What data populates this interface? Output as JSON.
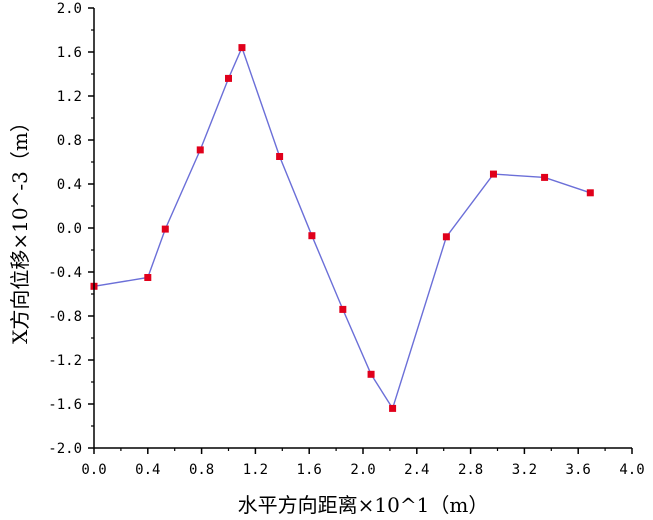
{
  "chart_data": {
    "type": "line",
    "title": "",
    "xlabel": "水平方向距离×10^1（m）",
    "ylabel": "X方向位移×10^-3（m）",
    "xlim": [
      0.0,
      4.0
    ],
    "ylim": [
      -2.0,
      2.0
    ],
    "x_ticks": [
      "0.0",
      "0.4",
      "0.8",
      "1.2",
      "1.6",
      "2.0",
      "2.4",
      "2.8",
      "3.2",
      "3.6",
      "4.0"
    ],
    "y_ticks": [
      "2.0",
      "1.6",
      "1.2",
      "0.8",
      "0.4",
      "0.0",
      "-0.4",
      "-0.8",
      "-1.2",
      "-1.6",
      "-2.0"
    ],
    "grid": false,
    "series": [
      {
        "line_color": "#6b6fd8",
        "marker_color": "#e0001b",
        "marker": "square",
        "x": [
          0.0,
          0.4,
          0.53,
          0.79,
          1.0,
          1.1,
          1.38,
          1.62,
          1.85,
          2.06,
          2.22,
          2.62,
          2.97,
          3.35,
          3.69
        ],
        "y": [
          -0.53,
          -0.45,
          -0.01,
          0.71,
          1.36,
          1.64,
          0.65,
          -0.07,
          -0.74,
          -1.33,
          -1.64,
          -0.08,
          0.49,
          0.46,
          0.32
        ]
      }
    ]
  }
}
